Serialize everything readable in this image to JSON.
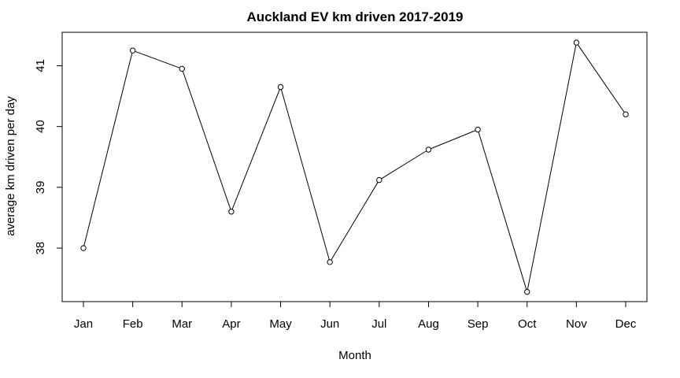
{
  "chart_data": {
    "type": "line",
    "title": "Auckland EV km driven 2017-2019",
    "xlabel": "Month",
    "ylabel": "average km driven per day",
    "categories": [
      "Jan",
      "Feb",
      "Mar",
      "Apr",
      "May",
      "Jun",
      "Jul",
      "Aug",
      "Sep",
      "Oct",
      "Nov",
      "Dec"
    ],
    "series": [
      {
        "values": [
          38.0,
          41.25,
          40.95,
          38.6,
          40.65,
          37.77,
          39.12,
          39.62,
          39.95,
          37.28,
          41.38,
          40.2
        ]
      }
    ],
    "y_ticks": [
      38,
      39,
      40,
      41
    ],
    "ylim": [
      37.12,
      41.55
    ],
    "grid": false,
    "markers": "open-circle",
    "line_color": "#000000"
  }
}
